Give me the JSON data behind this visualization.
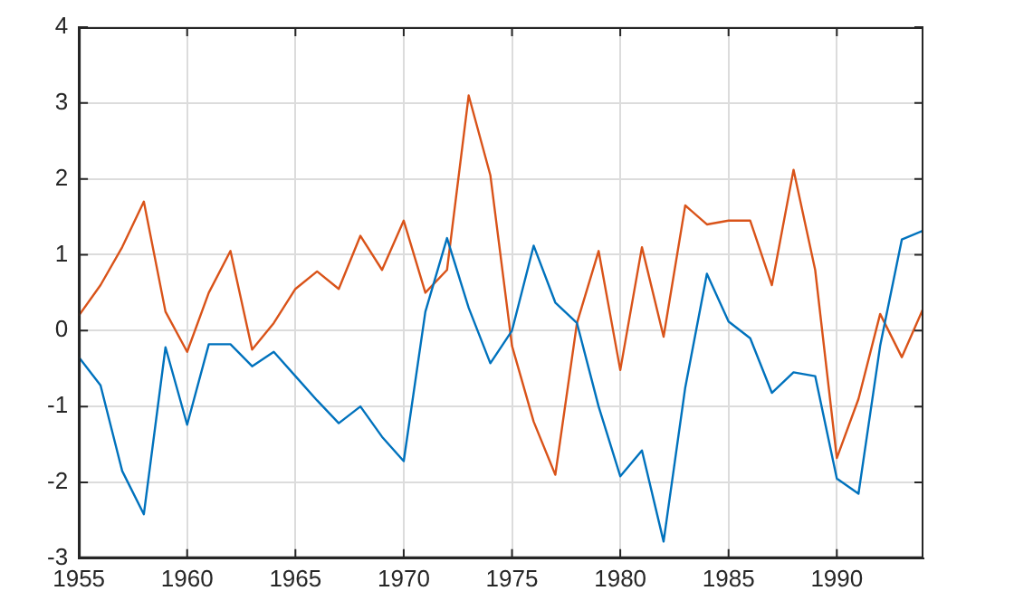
{
  "chart_data": {
    "type": "line",
    "x": [
      1955,
      1956,
      1957,
      1958,
      1959,
      1960,
      1961,
      1962,
      1963,
      1964,
      1965,
      1966,
      1967,
      1968,
      1969,
      1970,
      1971,
      1972,
      1973,
      1974,
      1975,
      1976,
      1977,
      1978,
      1979,
      1980,
      1981,
      1982,
      1983,
      1984,
      1985,
      1986,
      1987,
      1988,
      1989,
      1990,
      1991,
      1992,
      1993,
      1994
    ],
    "series": [
      {
        "color": "#0072bd",
        "values": [
          -0.35,
          -0.72,
          -1.85,
          -2.42,
          -0.22,
          -1.24,
          -0.18,
          -0.18,
          -0.47,
          -0.28,
          -0.6,
          -0.92,
          -1.22,
          -1.0,
          -1.4,
          -1.72,
          0.25,
          1.22,
          0.3,
          -0.43,
          0.0,
          1.12,
          0.37,
          0.1,
          -1.0,
          -1.92,
          -1.58,
          -2.78,
          -0.75,
          0.75,
          0.12,
          -0.1,
          -0.82,
          -0.55,
          -0.6,
          -1.95,
          -2.15,
          -0.2,
          1.2,
          1.32
        ]
      },
      {
        "color": "#d95319",
        "values": [
          0.2,
          0.6,
          1.1,
          1.7,
          0.25,
          -0.28,
          0.5,
          1.05,
          -0.25,
          0.1,
          0.55,
          0.78,
          0.55,
          1.25,
          0.8,
          1.45,
          0.5,
          0.8,
          3.1,
          2.05,
          -0.2,
          -1.2,
          -1.9,
          0.1,
          1.05,
          -0.52,
          1.1,
          -0.08,
          1.65,
          1.4,
          1.45,
          1.45,
          0.6,
          2.12,
          0.8,
          -1.68,
          -0.9,
          0.22,
          -0.35,
          0.3
        ]
      }
    ],
    "xlim": [
      1955,
      1994
    ],
    "xticks": [
      1955,
      1960,
      1965,
      1970,
      1975,
      1980,
      1985,
      1990
    ],
    "ylim": [
      -3,
      4
    ],
    "yticks": [
      -3,
      -2,
      -1,
      0,
      1,
      2,
      3,
      4
    ],
    "grid": true,
    "legend": false,
    "marker": "none",
    "line_style": "solid"
  }
}
